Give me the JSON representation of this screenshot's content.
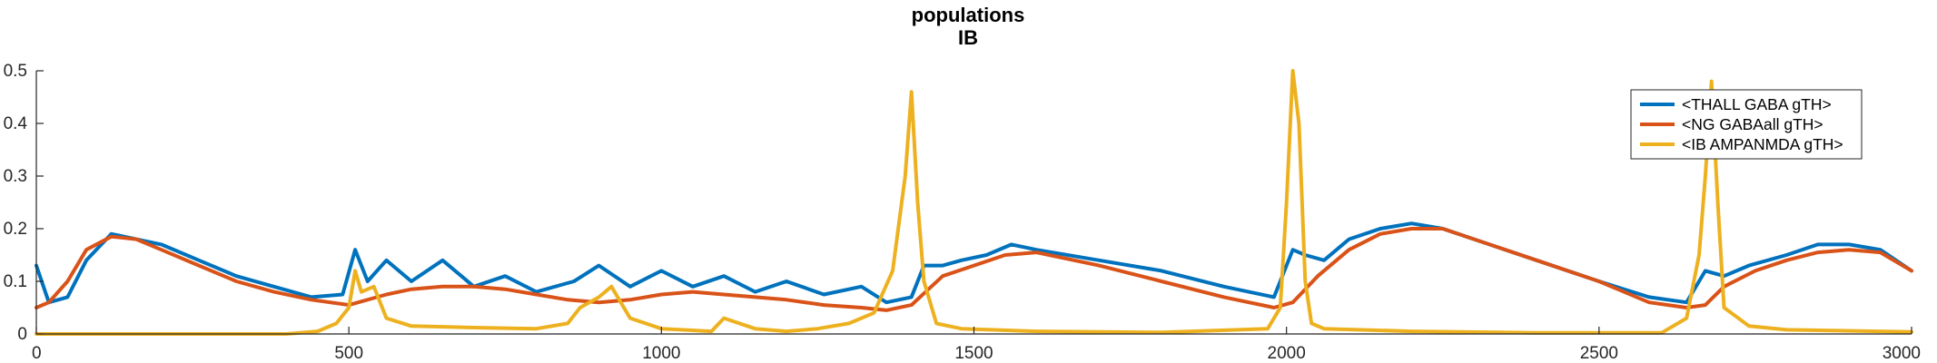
{
  "chart_data": {
    "type": "line",
    "title": "populations",
    "subtitle": "IB",
    "xlim": [
      0,
      3000
    ],
    "ylim": [
      0,
      0.5
    ],
    "xticks": [
      "0",
      "500",
      "1000",
      "1500",
      "2000",
      "2500",
      "3000"
    ],
    "yticks": [
      "0",
      "0.1",
      "0.2",
      "0.3",
      "0.4",
      "0.5"
    ],
    "grid": false,
    "legend_position": "top-right",
    "series": [
      {
        "name": "<THALL GABA gTH>",
        "color": "#0072BD",
        "x": [
          0,
          20,
          50,
          80,
          120,
          160,
          200,
          260,
          320,
          380,
          440,
          490,
          510,
          530,
          560,
          600,
          650,
          700,
          750,
          800,
          860,
          900,
          950,
          1000,
          1050,
          1100,
          1150,
          1200,
          1260,
          1320,
          1360,
          1400,
          1420,
          1450,
          1480,
          1520,
          1560,
          1600,
          1700,
          1800,
          1900,
          1980,
          2010,
          2030,
          2060,
          2100,
          2150,
          2200,
          2250,
          2300,
          2400,
          2500,
          2580,
          2640,
          2670,
          2700,
          2740,
          2800,
          2850,
          2900,
          2950,
          3000
        ],
        "y": [
          0.13,
          0.06,
          0.07,
          0.14,
          0.19,
          0.18,
          0.17,
          0.14,
          0.11,
          0.09,
          0.07,
          0.075,
          0.16,
          0.1,
          0.14,
          0.1,
          0.14,
          0.09,
          0.11,
          0.08,
          0.1,
          0.13,
          0.09,
          0.12,
          0.09,
          0.11,
          0.08,
          0.1,
          0.075,
          0.09,
          0.06,
          0.07,
          0.13,
          0.13,
          0.14,
          0.15,
          0.17,
          0.16,
          0.14,
          0.12,
          0.09,
          0.07,
          0.16,
          0.15,
          0.14,
          0.18,
          0.2,
          0.21,
          0.2,
          0.18,
          0.14,
          0.1,
          0.07,
          0.06,
          0.12,
          0.11,
          0.13,
          0.15,
          0.17,
          0.17,
          0.16,
          0.12
        ]
      },
      {
        "name": "<NG GABAall gTH>",
        "color": "#D95319",
        "x": [
          0,
          20,
          50,
          80,
          120,
          160,
          200,
          260,
          320,
          380,
          440,
          500,
          560,
          600,
          650,
          700,
          750,
          800,
          850,
          900,
          950,
          1000,
          1050,
          1100,
          1150,
          1200,
          1260,
          1320,
          1360,
          1400,
          1450,
          1500,
          1550,
          1600,
          1700,
          1800,
          1900,
          1980,
          2010,
          2050,
          2100,
          2150,
          2200,
          2250,
          2300,
          2400,
          2500,
          2580,
          2640,
          2670,
          2700,
          2750,
          2800,
          2850,
          2900,
          2950,
          3000
        ],
        "y": [
          0.05,
          0.06,
          0.1,
          0.16,
          0.185,
          0.18,
          0.16,
          0.13,
          0.1,
          0.08,
          0.065,
          0.055,
          0.075,
          0.085,
          0.09,
          0.09,
          0.085,
          0.075,
          0.065,
          0.06,
          0.065,
          0.075,
          0.08,
          0.075,
          0.07,
          0.065,
          0.055,
          0.05,
          0.045,
          0.055,
          0.11,
          0.13,
          0.15,
          0.155,
          0.13,
          0.1,
          0.07,
          0.05,
          0.06,
          0.11,
          0.16,
          0.19,
          0.2,
          0.2,
          0.18,
          0.14,
          0.1,
          0.06,
          0.05,
          0.055,
          0.09,
          0.12,
          0.14,
          0.155,
          0.16,
          0.155,
          0.12
        ]
      },
      {
        "name": "<IB AMPANMDA gTH>",
        "color": "#EDB120",
        "x": [
          0,
          200,
          400,
          450,
          480,
          500,
          510,
          520,
          540,
          560,
          600,
          700,
          800,
          850,
          870,
          900,
          920,
          950,
          1000,
          1080,
          1100,
          1150,
          1200,
          1250,
          1300,
          1340,
          1370,
          1390,
          1400,
          1410,
          1420,
          1440,
          1480,
          1600,
          1800,
          1970,
          1990,
          2000,
          2010,
          2020,
          2030,
          2040,
          2060,
          2200,
          2400,
          2600,
          2640,
          2660,
          2670,
          2680,
          2690,
          2700,
          2740,
          2800,
          3000
        ],
        "y": [
          0.0,
          0.0,
          0.0,
          0.005,
          0.02,
          0.05,
          0.12,
          0.08,
          0.09,
          0.03,
          0.015,
          0.012,
          0.01,
          0.02,
          0.05,
          0.07,
          0.09,
          0.03,
          0.01,
          0.005,
          0.03,
          0.01,
          0.005,
          0.01,
          0.02,
          0.04,
          0.12,
          0.3,
          0.46,
          0.25,
          0.1,
          0.02,
          0.01,
          0.005,
          0.003,
          0.01,
          0.05,
          0.25,
          0.5,
          0.4,
          0.1,
          0.02,
          0.01,
          0.005,
          0.002,
          0.002,
          0.03,
          0.15,
          0.3,
          0.48,
          0.25,
          0.05,
          0.015,
          0.008,
          0.004
        ]
      }
    ]
  }
}
